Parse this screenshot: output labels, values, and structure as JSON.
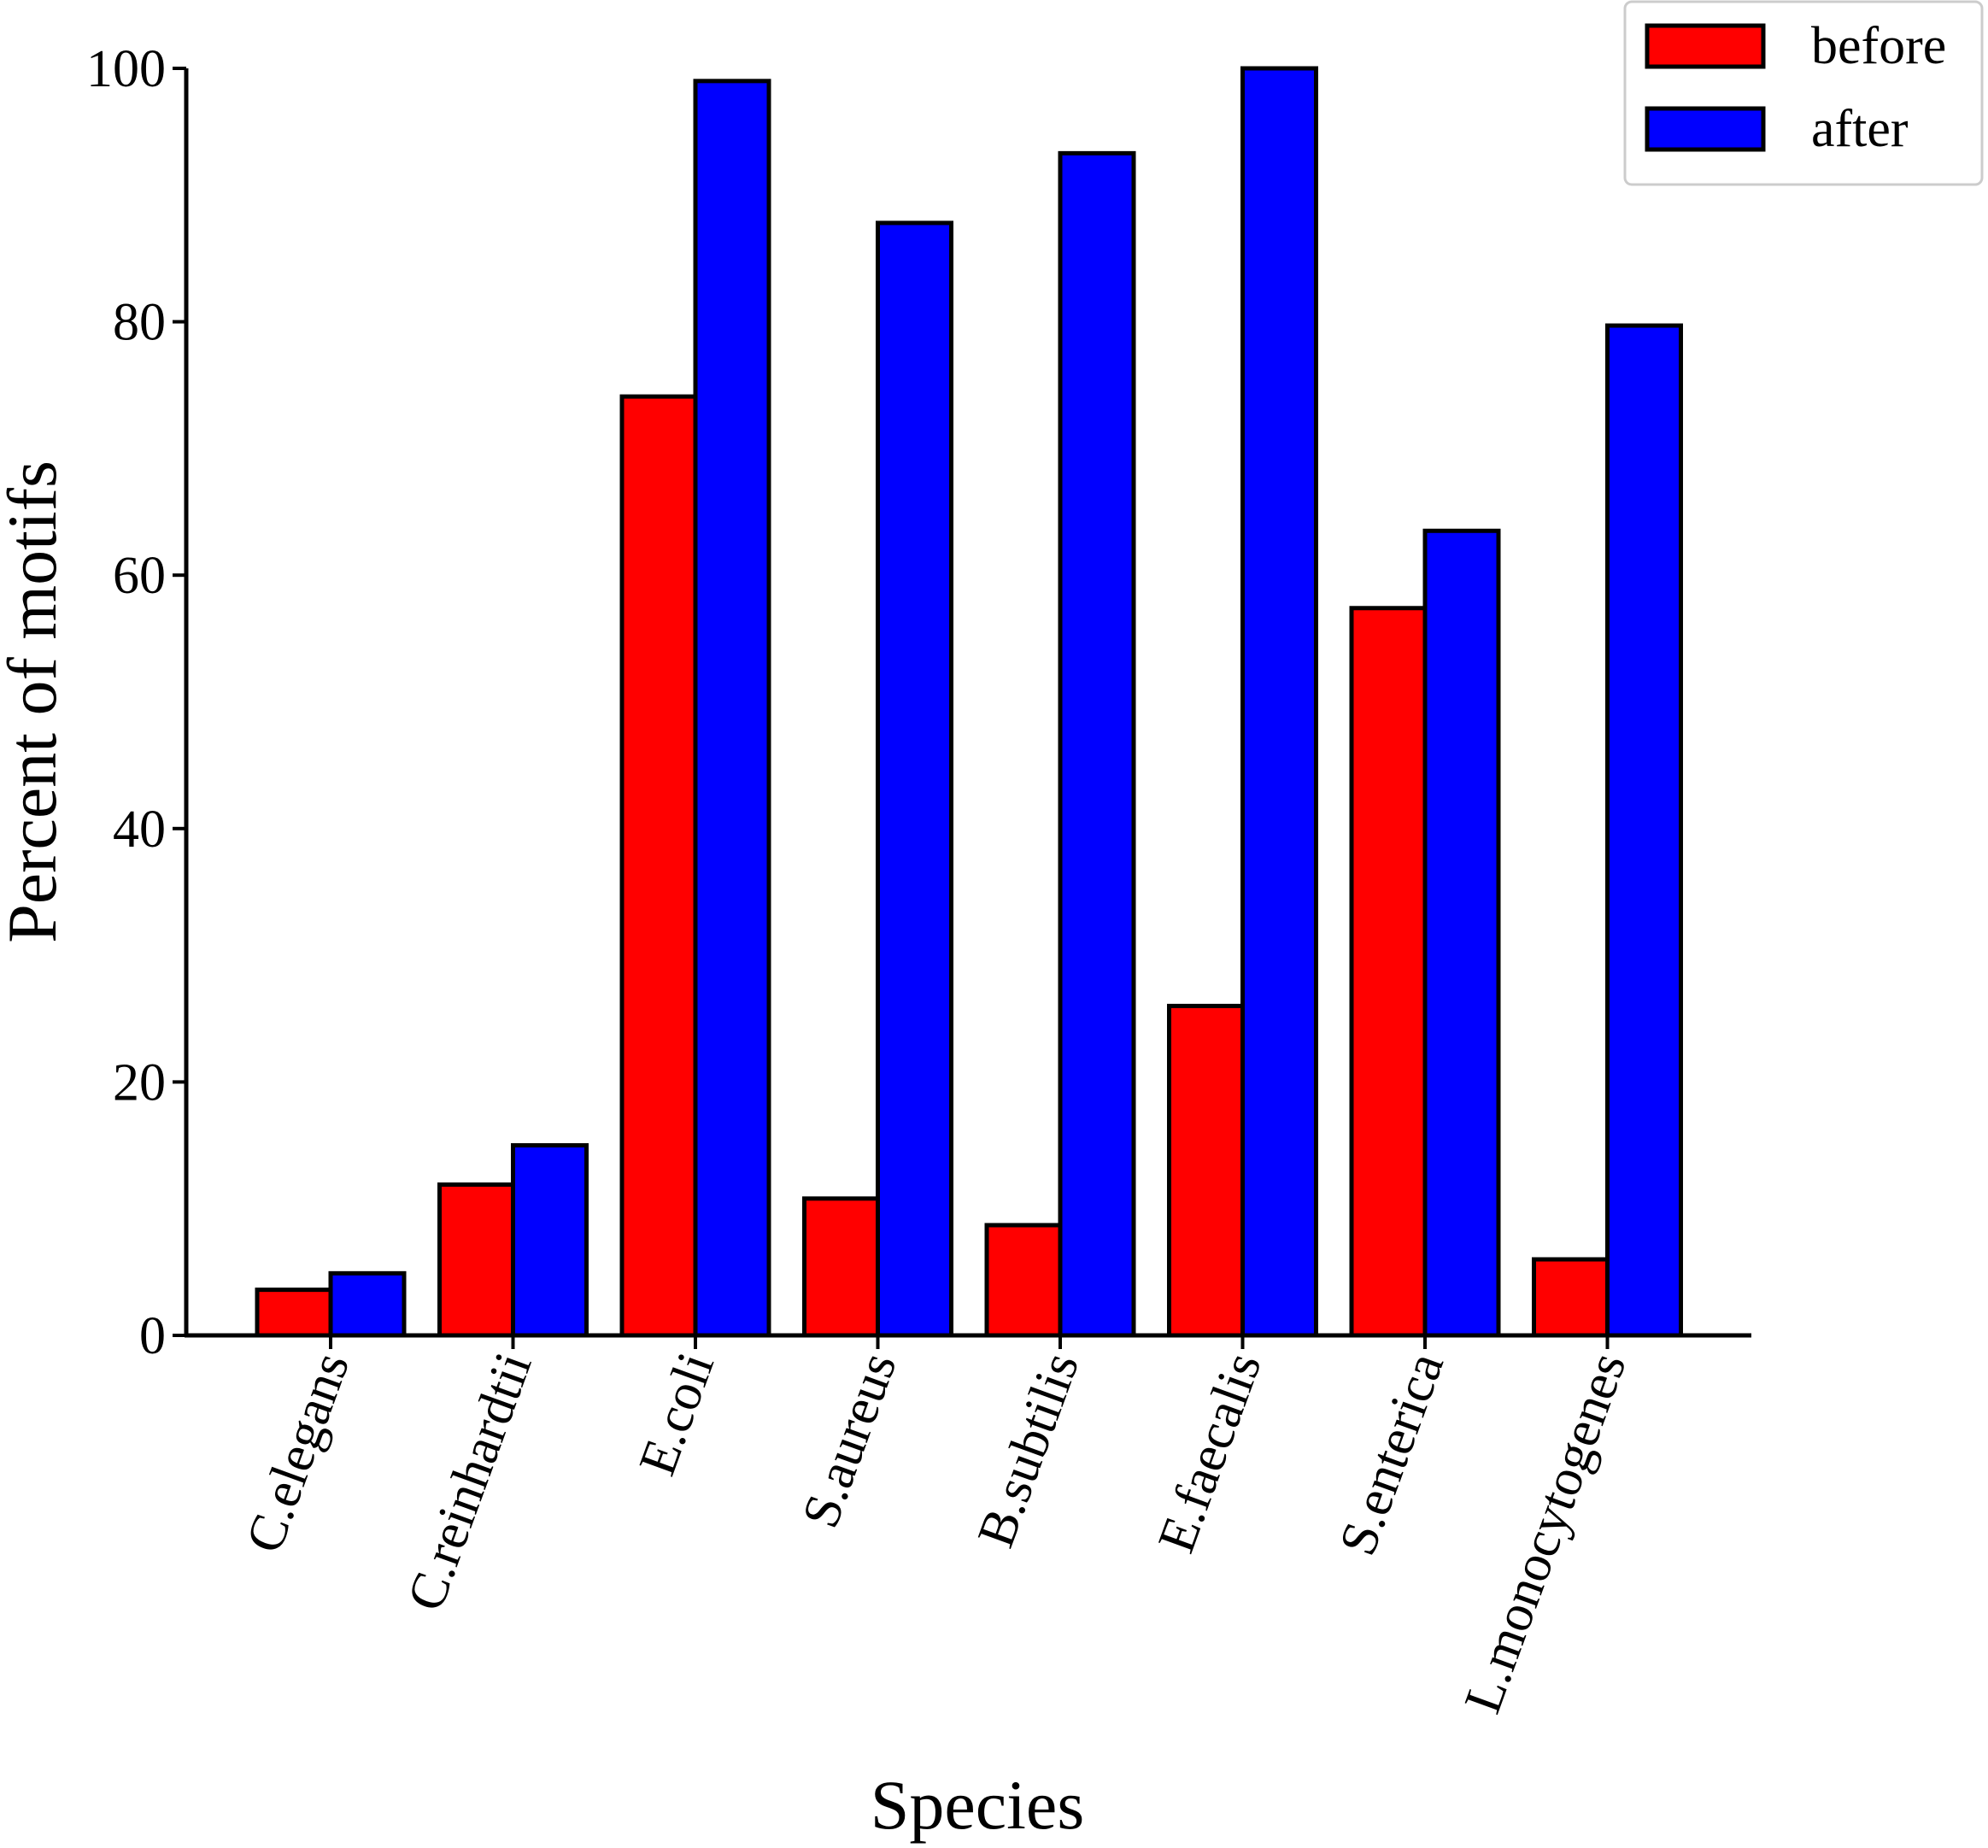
{
  "chart_data": {
    "type": "bar",
    "title": "",
    "xlabel": "Species",
    "ylabel": "Percent of motifs",
    "ylim": [
      0,
      100
    ],
    "yticks": [
      0,
      20,
      40,
      60,
      80,
      100
    ],
    "categories": [
      "C.elegans",
      "C.reinhardtii",
      "E.coli",
      "S.aureus",
      "B.subtilis",
      "E.faecalis",
      "S.enterica",
      "L.monocytogenes"
    ],
    "series": [
      {
        "name": "before",
        "color": "#ff0000",
        "values": [
          3.6,
          11.9,
          74.1,
          10.8,
          8.7,
          26.0,
          57.4,
          6.0
        ]
      },
      {
        "name": "after",
        "color": "#0000ff",
        "values": [
          4.9,
          15.0,
          99.0,
          87.8,
          93.3,
          100.0,
          63.5,
          79.7
        ]
      }
    ],
    "legend_position": "top-right",
    "grid": false
  }
}
